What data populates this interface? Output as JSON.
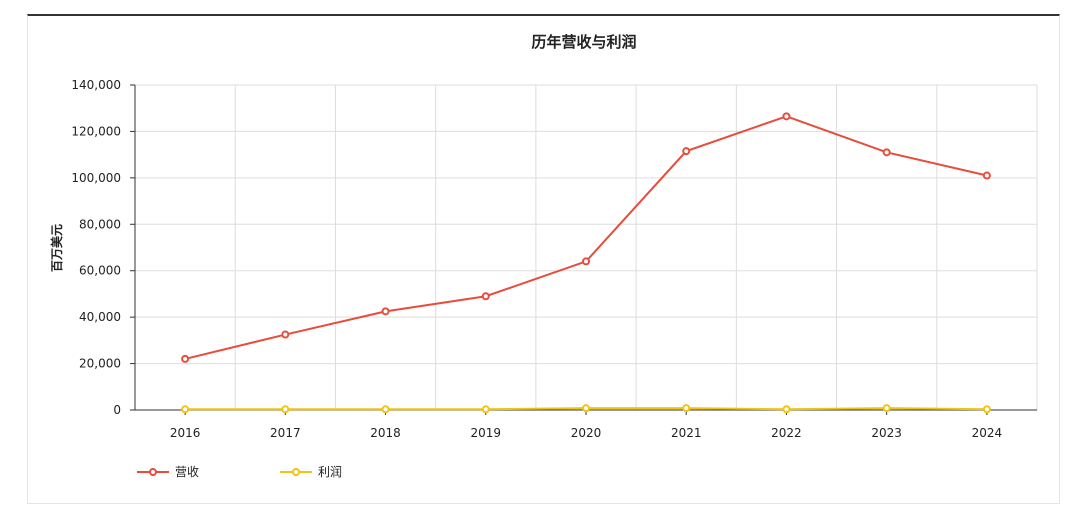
{
  "chart_data": {
    "type": "line",
    "title": "历年营收与利润",
    "ylabel": "百万美元",
    "xlabel": "",
    "categories": [
      "2016",
      "2017",
      "2018",
      "2019",
      "2020",
      "2021",
      "2022",
      "2023",
      "2024"
    ],
    "ylim": [
      0,
      140000
    ],
    "yticks": [
      0,
      20000,
      40000,
      60000,
      80000,
      100000,
      120000,
      140000
    ],
    "ytick_labels": [
      "0",
      "20,000",
      "40,000",
      "60,000",
      "80,000",
      "100,000",
      "120,000",
      "140,000"
    ],
    "grid": true,
    "legend_position": "bottom-left",
    "series": [
      {
        "name": "营收",
        "color": "#e74c3c",
        "values": [
          22000,
          32500,
          42500,
          49000,
          64000,
          111500,
          126500,
          111000,
          101000
        ]
      },
      {
        "name": "利润",
        "color": "#f1c40f",
        "values": [
          300,
          300,
          300,
          300,
          800,
          800,
          300,
          800,
          300
        ]
      }
    ]
  }
}
